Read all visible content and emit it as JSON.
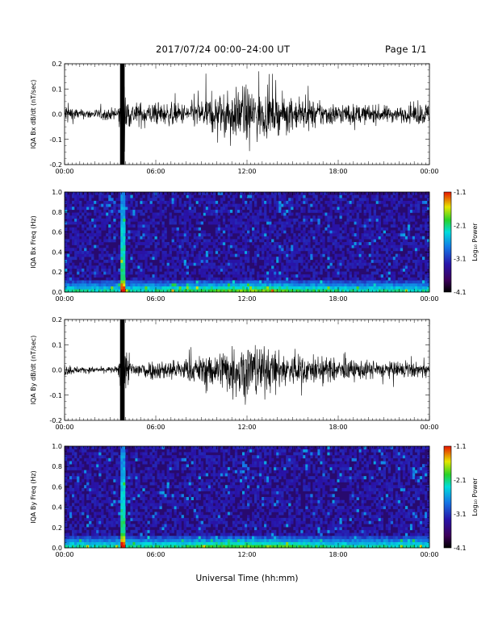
{
  "header": {
    "title": "2017/07/24  00:00–24:00 UT",
    "page": "Page 1/1"
  },
  "chart_data": [
    {
      "type": "line",
      "ylabel": "IQA Bx dB/dt (nT/sec)",
      "ylim": [
        -0.2,
        0.2
      ],
      "yticks": [
        "0.2",
        "0.1",
        "0.0",
        "-0.1",
        "-0.2"
      ],
      "xticks": [
        "00:00",
        "06:00",
        "12:00",
        "18:00",
        "00:00"
      ],
      "xlim_hours": [
        0,
        24
      ],
      "description_envelope": [
        {
          "t": 0.0,
          "amp": 0.08
        },
        {
          "t": 1.0,
          "amp": 0.03
        },
        {
          "t": 3.5,
          "amp": 0.04
        },
        {
          "t": 3.8,
          "amp": 0.22
        },
        {
          "t": 4.3,
          "amp": 0.08
        },
        {
          "t": 8.0,
          "amp": 0.07
        },
        {
          "t": 10.0,
          "amp": 0.13
        },
        {
          "t": 12.0,
          "amp": 0.18
        },
        {
          "t": 14.0,
          "amp": 0.12
        },
        {
          "t": 18.0,
          "amp": 0.07
        },
        {
          "t": 22.5,
          "amp": 0.05
        },
        {
          "t": 23.8,
          "amp": 0.08
        },
        {
          "t": 24.0,
          "amp": 0.06
        }
      ]
    },
    {
      "type": "heatmap",
      "ylabel": "IQA Bx Freq (Hz)",
      "ylim": [
        0.0,
        1.0
      ],
      "yticks": [
        "1.0",
        "0.8",
        "0.6",
        "0.4",
        "0.2",
        "0.0"
      ],
      "xticks": [
        "00:00",
        "06:00",
        "12:00",
        "18:00",
        "00:00"
      ],
      "colorbar": {
        "label": "Log₁₀ Power",
        "ticks": [
          "-1.1",
          "-2.1",
          "-3.1",
          "-4.1"
        ],
        "range": [
          -4.1,
          -1.1
        ]
      }
    },
    {
      "type": "line",
      "ylabel": "IQA By dB/dt (nT/sec)",
      "ylim": [
        -0.2,
        0.2
      ],
      "yticks": [
        "0.2",
        "0.1",
        "0.0",
        "-0.1",
        "-0.2"
      ],
      "xticks": [
        "00:00",
        "06:00",
        "12:00",
        "18:00",
        "00:00"
      ],
      "xlim_hours": [
        0,
        24
      ],
      "description_envelope": [
        {
          "t": 0.0,
          "amp": 0.04
        },
        {
          "t": 1.0,
          "amp": 0.02
        },
        {
          "t": 3.5,
          "amp": 0.02
        },
        {
          "t": 3.8,
          "amp": 0.22
        },
        {
          "t": 4.3,
          "amp": 0.06
        },
        {
          "t": 8.0,
          "amp": 0.07
        },
        {
          "t": 10.0,
          "amp": 0.12
        },
        {
          "t": 12.0,
          "amp": 0.2
        },
        {
          "t": 14.0,
          "amp": 0.12
        },
        {
          "t": 18.0,
          "amp": 0.07
        },
        {
          "t": 22.5,
          "amp": 0.05
        },
        {
          "t": 23.8,
          "amp": 0.05
        },
        {
          "t": 24.0,
          "amp": 0.04
        }
      ]
    },
    {
      "type": "heatmap",
      "ylabel": "IQA By Freq (Hz)",
      "ylim": [
        0.0,
        1.0
      ],
      "yticks": [
        "1.0",
        "0.8",
        "0.6",
        "0.4",
        "0.2",
        "0.0"
      ],
      "xticks": [
        "00:00",
        "06:00",
        "12:00",
        "18:00",
        "00:00"
      ],
      "colorbar": {
        "label": "Log₁₀ Power",
        "ticks": [
          "-1.1",
          "-2.1",
          "-3.1",
          "-4.1"
        ],
        "range": [
          -4.1,
          -1.1
        ]
      }
    }
  ],
  "xlabel": "Universal Time (hh:mm)"
}
